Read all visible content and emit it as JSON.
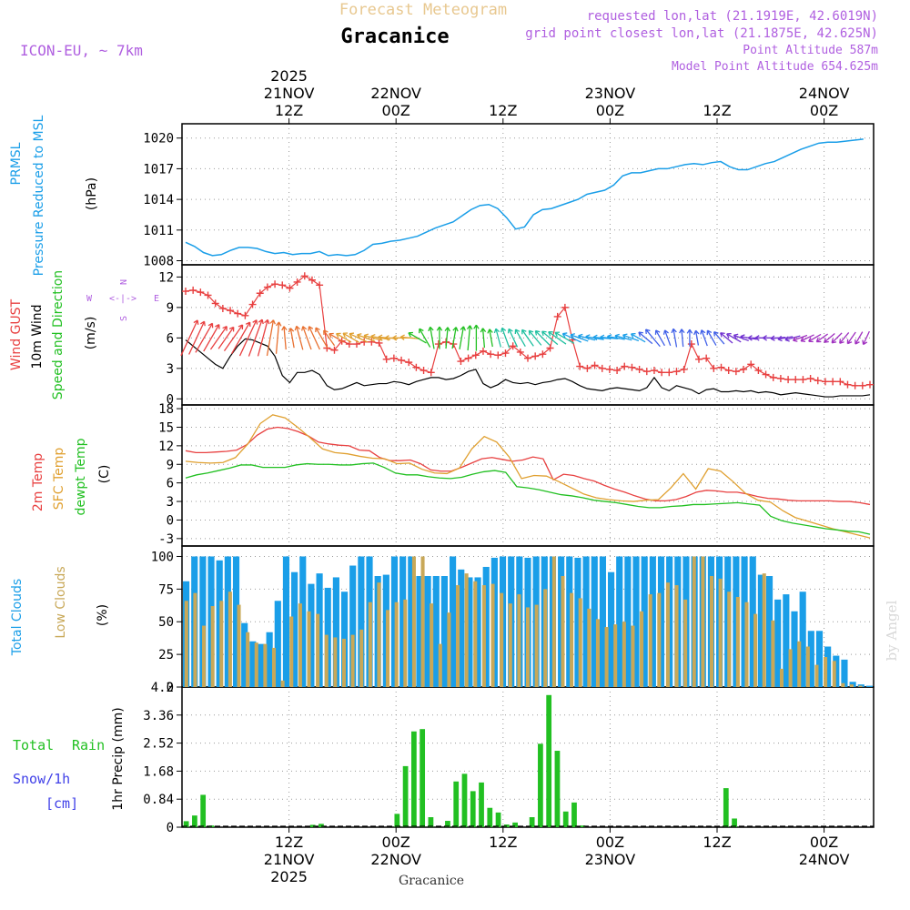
{
  "header": {
    "subtitle": "Forecast Meteogram",
    "location": "Gracanice",
    "model": "ICON-EU, ~ 7km",
    "requested": "requested lon,lat (21.1919E, 42.6019N)",
    "grid_point": "grid point closest lon,lat (21.1875E, 42.625N)",
    "point_altitude": "Point Altitude 587m",
    "model_altitude": "Model Point Altitude 654.625m",
    "footer_location": "Gracanice",
    "watermark": "by Angel"
  },
  "colors": {
    "pressure": "#1a9ee8",
    "gust": "#e84040",
    "wind": "#000000",
    "temp2m": "#e84040",
    "sfc": "#e0a030",
    "dewpt": "#22c022",
    "total_clouds": "#1a9ee8",
    "low_clouds": "#c8a858",
    "rain": "#22c022",
    "snow": "#4040e8",
    "header_purple": "#b060e0",
    "header_gold": "#e8c890"
  },
  "time_axis": {
    "top_labels": [
      {
        "h": 12,
        "lines": [
          "2025",
          "21NOV",
          "12Z"
        ]
      },
      {
        "h": 24,
        "lines": [
          "22NOV",
          "00Z"
        ]
      },
      {
        "h": 36,
        "lines": [
          "12Z"
        ]
      },
      {
        "h": 48,
        "lines": [
          "23NOV",
          "00Z"
        ]
      },
      {
        "h": 60,
        "lines": [
          "12Z"
        ]
      },
      {
        "h": 72,
        "lines": [
          "24NOV",
          "00Z"
        ]
      }
    ],
    "bottom_labels": [
      {
        "h": 12,
        "lines": [
          "12Z",
          "21NOV",
          "2025"
        ]
      },
      {
        "h": 24,
        "lines": [
          "00Z",
          "22NOV"
        ]
      },
      {
        "h": 36,
        "lines": [
          "12Z"
        ]
      },
      {
        "h": 48,
        "lines": [
          "00Z",
          "23NOV"
        ]
      },
      {
        "h": 60,
        "lines": [
          "12Z"
        ]
      },
      {
        "h": 72,
        "lines": [
          "00Z",
          "24NOV"
        ]
      }
    ]
  },
  "panel_labels": {
    "pressure": {
      "l1": "PRMSL",
      "l2": "Pressure Reduced to MSL",
      "unit": "(hPa)"
    },
    "wind": {
      "l1": "Wind GUST",
      "l2": "10m Wind",
      "l3": "Speed and Direction",
      "unit": "(m/s)",
      "rose_n": "N",
      "rose_s": "S",
      "rose_w": "W",
      "rose_e": "E",
      "rose_arrow": "<-|->"
    },
    "temp": {
      "l1": "2m Temp",
      "l2": "SFC Temp",
      "l3": "dewpt Temp",
      "unit": "(C)"
    },
    "clouds": {
      "l1": "Total Clouds",
      "l2": "Low Clouds",
      "unit": "(%)"
    },
    "precip": {
      "l1": "Total",
      "l1b": "Rain",
      "l2": "Snow/1h",
      "l3": "[cm]",
      "unit": "1hr Precip (mm)"
    }
  },
  "chart_data": [
    {
      "type": "line",
      "title": "PRMSL Pressure Reduced to MSL",
      "ylabel": "(hPa)",
      "x_unit": "hours from 21NOV 01Z",
      "ylim": [
        1007.6,
        1021.4
      ],
      "yticks": [
        1008,
        1011,
        1014,
        1017,
        1020
      ],
      "series": [
        {
          "name": "PRMSL",
          "x": [
            0,
            1,
            2,
            3,
            4,
            5,
            6,
            7,
            8,
            9,
            10,
            11,
            12,
            13,
            14,
            15,
            16,
            17,
            18,
            19,
            20,
            21,
            22,
            23,
            24,
            25,
            26,
            27,
            28,
            29,
            30,
            31,
            32,
            33,
            34,
            35,
            36,
            37,
            38,
            39,
            40,
            41,
            42,
            43,
            44,
            45,
            46,
            47,
            48,
            49,
            50,
            51,
            52,
            53,
            54,
            55,
            56,
            57,
            58,
            59,
            60,
            61,
            62,
            63,
            64,
            65,
            66,
            67,
            68,
            69,
            70,
            71,
            72,
            73,
            74,
            75,
            76
          ],
          "values": [
            1009.8,
            1009.4,
            1008.8,
            1008.5,
            1008.6,
            1009.0,
            1009.3,
            1009.3,
            1009.2,
            1008.9,
            1008.7,
            1008.8,
            1008.6,
            1008.7,
            1008.7,
            1008.9,
            1008.5,
            1008.6,
            1008.5,
            1008.6,
            1009.0,
            1009.6,
            1009.7,
            1009.9,
            1010.0,
            1010.2,
            1010.4,
            1010.8,
            1011.2,
            1011.5,
            1011.8,
            1012.4,
            1013.0,
            1013.4,
            1013.5,
            1013.1,
            1012.2,
            1011.1,
            1011.3,
            1012.5,
            1013.0,
            1013.1,
            1013.4,
            1013.7,
            1014.0,
            1014.5,
            1014.7,
            1014.9,
            1015.4,
            1016.3,
            1016.6,
            1016.6,
            1016.8,
            1017.0,
            1017.0,
            1017.2,
            1017.4,
            1017.5,
            1017.4,
            1017.6,
            1017.7,
            1017.2,
            1016.9,
            1016.9,
            1017.2,
            1017.5,
            1017.7,
            1018.1,
            1018.5,
            1018.9,
            1019.2,
            1019.5,
            1019.6,
            1019.6,
            1019.7,
            1019.8,
            1019.9
          ]
        }
      ]
    },
    {
      "type": "line",
      "title": "Wind GUST / 10m Wind Speed and Direction",
      "ylabel": "(m/s)",
      "ylim": [
        -0.6,
        13.2
      ],
      "yticks": [
        0,
        3,
        6,
        9,
        12
      ],
      "series": [
        {
          "name": "Wind GUST",
          "values": [
            10.6,
            10.7,
            10.5,
            10.2,
            9.4,
            8.9,
            8.7,
            8.4,
            8.2,
            9.3,
            10.4,
            11.0,
            11.3,
            11.2,
            10.9,
            11.5,
            12.1,
            11.7,
            11.2,
            5.0,
            4.8,
            5.7,
            5.4,
            5.4,
            5.6,
            5.6,
            5.5,
            3.9,
            4.0,
            3.8,
            3.6,
            3.1,
            2.8,
            2.6,
            5.4,
            5.6,
            5.4,
            3.7,
            4.0,
            4.3,
            4.7,
            4.4,
            4.3,
            4.5,
            5.2,
            4.6,
            4.0,
            4.2,
            4.4,
            5.0,
            8.1,
            9.0,
            5.8,
            3.2,
            3.0,
            3.3,
            3.0,
            2.9,
            2.8,
            3.2,
            3.1,
            2.9,
            2.7,
            2.8,
            2.6,
            2.6,
            2.7,
            2.9,
            5.4,
            3.9,
            4.0,
            3.0,
            3.1,
            2.8,
            2.7,
            2.9,
            3.4,
            2.8,
            2.4,
            2.1,
            2.0,
            1.9,
            1.9,
            1.9,
            2.0,
            1.8,
            1.7,
            1.7,
            1.7,
            1.4,
            1.3,
            1.3,
            1.4
          ]
        },
        {
          "name": "10m Wind",
          "values": [
            5.8,
            5.2,
            4.6,
            4.0,
            3.4,
            3.0,
            4.2,
            5.2,
            5.9,
            5.8,
            5.5,
            5.2,
            4.2,
            2.3,
            1.6,
            2.6,
            2.6,
            2.8,
            2.4,
            1.3,
            0.9,
            1.0,
            1.3,
            1.6,
            1.3,
            1.4,
            1.5,
            1.5,
            1.7,
            1.6,
            1.4,
            1.7,
            1.9,
            2.1,
            2.1,
            1.9,
            2.0,
            2.3,
            2.7,
            2.9,
            1.5,
            1.1,
            1.4,
            1.9,
            1.6,
            1.5,
            1.6,
            1.4,
            1.6,
            1.7,
            1.9,
            2.0,
            1.7,
            1.3,
            1.0,
            0.9,
            0.8,
            1.0,
            1.1,
            1.0,
            0.9,
            0.8,
            1.1,
            2.1,
            1.1,
            0.8,
            1.3,
            1.1,
            0.9,
            0.5,
            0.9,
            1.0,
            0.7,
            0.7,
            0.8,
            0.7,
            0.8,
            0.6,
            0.7,
            0.6,
            0.4,
            0.5,
            0.6,
            0.5,
            0.4,
            0.3,
            0.2,
            0.2,
            0.3,
            0.3,
            0.3,
            0.3,
            0.4
          ]
        },
        {
          "name": "Wind direction (to, deg)",
          "dir": [
            25,
            25,
            30,
            30,
            35,
            35,
            35,
            30,
            25,
            20,
            15,
            10,
            5,
            355,
            350,
            345,
            340,
            335,
            330,
            325,
            300,
            300,
            300,
            295,
            290,
            285,
            280,
            275,
            270,
            270,
            275,
            300,
            330,
            350,
            0,
            5,
            10,
            10,
            5,
            0,
            355,
            350,
            345,
            340,
            335,
            330,
            325,
            320,
            315,
            310,
            305,
            300,
            295,
            290,
            285,
            280,
            275,
            275,
            280,
            285,
            290,
            300,
            310,
            320,
            330,
            340,
            350,
            355,
            0,
            350,
            340,
            330,
            320,
            310,
            300,
            290,
            280,
            270,
            270,
            270,
            265,
            260,
            255,
            250,
            245,
            240,
            235,
            230,
            225,
            220,
            215,
            210,
            205
          ]
        }
      ]
    },
    {
      "type": "line",
      "title": "2m Temp / SFC Temp / dewpt Temp",
      "ylabel": "(C)",
      "ylim": [
        -4.2,
        18.6
      ],
      "yticks": [
        -3,
        0,
        3,
        6,
        9,
        12,
        15,
        18
      ],
      "series": [
        {
          "name": "2m Temp",
          "values": [
            11.2,
            10.9,
            10.9,
            11.0,
            11.1,
            11.3,
            12.2,
            13.7,
            14.7,
            15.0,
            14.8,
            14.3,
            13.6,
            12.6,
            12.3,
            12.1,
            12.0,
            11.3,
            11.2,
            10.1,
            9.6,
            9.6,
            9.7,
            9.1,
            8.1,
            7.9,
            7.9,
            8.5,
            9.2,
            9.9,
            10.1,
            9.8,
            9.5,
            9.7,
            10.2,
            9.9,
            6.5,
            7.4,
            7.2,
            6.7,
            6.3,
            5.6,
            5.0,
            4.5,
            3.9,
            3.4,
            3.1,
            3.1,
            3.3,
            3.8,
            4.5,
            4.8,
            4.7,
            4.5,
            4.5,
            4.2,
            3.8,
            3.5,
            3.4,
            3.2,
            3.1,
            3.1,
            3.1,
            3.1,
            3.0,
            3.0,
            2.8,
            2.5
          ]
        },
        {
          "name": "SFC Temp",
          "values": [
            9.5,
            9.3,
            9.2,
            9.3,
            10.1,
            12.3,
            15.6,
            17.0,
            16.5,
            15.0,
            13.3,
            11.5,
            10.9,
            10.7,
            10.3,
            10.0,
            9.9,
            9.1,
            9.2,
            8.2,
            7.6,
            7.5,
            8.4,
            11.5,
            13.5,
            12.6,
            10.2,
            6.7,
            7.2,
            7.1,
            6.2,
            5.2,
            4.2,
            3.6,
            3.3,
            3.1,
            3.0,
            3.2,
            3.3,
            5.2,
            7.5,
            5.0,
            8.3,
            7.9,
            6.2,
            4.3,
            3.2,
            2.9,
            1.5,
            0.4,
            -0.2,
            -0.8,
            -1.4,
            -1.9,
            -2.4,
            -2.9
          ]
        },
        {
          "name": "dewpt Temp",
          "values": [
            6.8,
            7.3,
            7.6,
            8.0,
            8.4,
            8.9,
            8.9,
            8.5,
            8.5,
            8.5,
            8.9,
            9.1,
            9.0,
            9.0,
            8.9,
            8.9,
            9.1,
            9.2,
            8.5,
            7.6,
            7.3,
            7.3,
            7.0,
            6.8,
            6.7,
            6.9,
            7.4,
            7.8,
            8.0,
            7.7,
            5.4,
            5.2,
            4.9,
            4.5,
            4.1,
            3.9,
            3.6,
            3.2,
            3.0,
            2.8,
            2.5,
            2.2,
            2.0,
            2.0,
            2.2,
            2.3,
            2.5,
            2.5,
            2.6,
            2.7,
            2.8,
            2.6,
            2.4,
            0.6,
            -0.1,
            -0.5,
            -0.8,
            -1.1,
            -1.4,
            -1.6,
            -1.8,
            -1.9,
            -2.3
          ]
        }
      ]
    },
    {
      "type": "bar",
      "title": "Total Clouds / Low Clouds",
      "ylabel": "(%)",
      "ylim": [
        0,
        108
      ],
      "yticks": [
        0,
        25,
        50,
        75,
        100
      ],
      "series": [
        {
          "name": "Total Clouds",
          "values": [
            81,
            100,
            100,
            100,
            97,
            100,
            100,
            49,
            35,
            33,
            42,
            66,
            100,
            88,
            100,
            79,
            87,
            76,
            84,
            73,
            93,
            100,
            100,
            85,
            86,
            100,
            100,
            100,
            85,
            85,
            85,
            85,
            100,
            90,
            84,
            84,
            92,
            99,
            100,
            100,
            100,
            99,
            100,
            100,
            100,
            100,
            100,
            99,
            100,
            100,
            100,
            88,
            100,
            100,
            100,
            100,
            100,
            100,
            100,
            100,
            100,
            100,
            100,
            100,
            100,
            100,
            100,
            100,
            100,
            86,
            85,
            67,
            71,
            58,
            73,
            43,
            43,
            31,
            24,
            21,
            4,
            2,
            1
          ]
        },
        {
          "name": "Low Clouds",
          "values": [
            66,
            72,
            47,
            62,
            66,
            73,
            63,
            42,
            34,
            33,
            30,
            5,
            54,
            64,
            58,
            56,
            40,
            38,
            37,
            40,
            44,
            65,
            80,
            59,
            65,
            67,
            100,
            100,
            64,
            33,
            57,
            78,
            87,
            81,
            78,
            79,
            72,
            64,
            71,
            61,
            63,
            75,
            100,
            85,
            72,
            68,
            60,
            52,
            46,
            48,
            50,
            47,
            58,
            71,
            72,
            80,
            78,
            67,
            100,
            100,
            85,
            83,
            73,
            69,
            65,
            56,
            87,
            51,
            14,
            29,
            35,
            31,
            17,
            23,
            20,
            3,
            2,
            1,
            0
          ]
        }
      ]
    },
    {
      "type": "bar",
      "title": "1hr Precip",
      "ylabel": "1hr Precip (mm)",
      "ylim": [
        0,
        4.2
      ],
      "yticks": [
        0,
        0.84,
        1.68,
        2.52,
        3.36,
        4.2
      ],
      "series": [
        {
          "name": "Total Rain",
          "values": [
            0.18,
            0.35,
            0.97,
            0.05,
            0,
            0,
            0,
            0,
            0,
            0,
            0,
            0,
            0,
            0,
            0,
            0.07,
            0.1,
            0,
            0,
            0,
            0,
            0,
            0,
            0,
            0,
            0.4,
            1.83,
            2.87,
            2.94,
            0.3,
            0,
            0.19,
            1.37,
            1.6,
            1.08,
            1.34,
            0.58,
            0.44,
            0.08,
            0.14,
            0,
            0.3,
            2.5,
            3.96,
            2.29,
            0.47,
            0.74,
            0.05,
            0,
            0,
            0,
            0,
            0,
            0,
            0,
            0,
            0,
            0,
            0,
            0,
            0,
            0,
            0,
            0,
            1.17,
            0.26,
            0,
            0,
            0,
            0,
            0,
            0,
            0,
            0,
            0,
            0,
            0,
            0,
            0,
            0,
            0,
            0
          ]
        },
        {
          "name": "Snow/1h",
          "values": []
        }
      ]
    }
  ]
}
